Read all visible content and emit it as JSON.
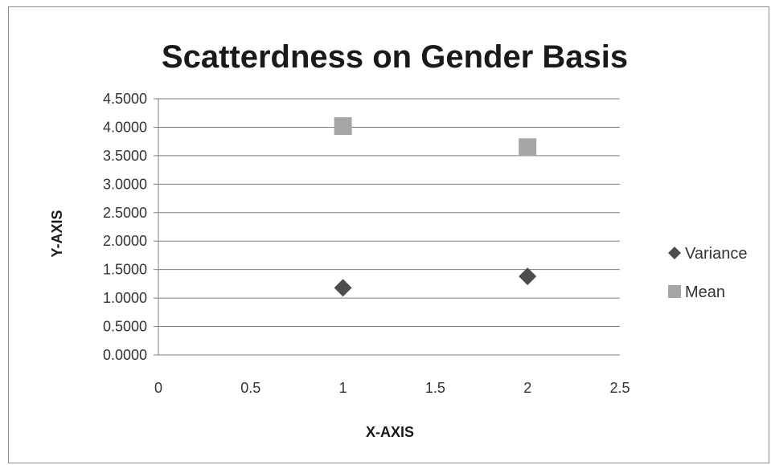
{
  "chart_data": {
    "type": "scatter",
    "title": "Scatterdness on Gender Basis",
    "xlabel": "X-AXIS",
    "ylabel": "Y-AXIS",
    "xlim": [
      0,
      2.5
    ],
    "ylim": [
      0,
      4.5
    ],
    "x_ticks": [
      "0",
      "0.5",
      "1",
      "1.5",
      "2",
      "2.5"
    ],
    "y_ticks": [
      "0.0000",
      "0.5000",
      "1.0000",
      "1.5000",
      "2.0000",
      "2.5000",
      "3.0000",
      "3.5000",
      "4.0000",
      "4.5000"
    ],
    "grid": "horizontal",
    "legend_position": "right",
    "series": [
      {
        "name": "Variance",
        "marker": "diamond",
        "color": "#4d4d4d",
        "points": [
          {
            "x": 1,
            "y": 1.18
          },
          {
            "x": 2,
            "y": 1.38
          }
        ]
      },
      {
        "name": "Mean",
        "marker": "square",
        "color": "#a6a6a6",
        "points": [
          {
            "x": 1,
            "y": 4.02
          },
          {
            "x": 2,
            "y": 3.65
          }
        ]
      }
    ]
  }
}
